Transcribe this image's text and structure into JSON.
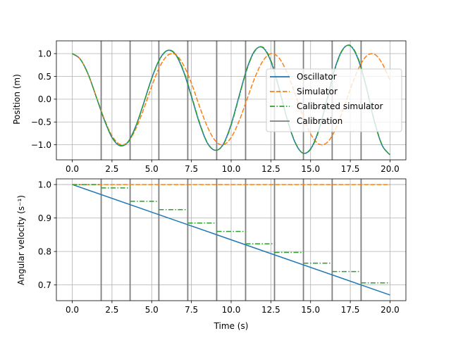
{
  "chart_data": [
    {
      "type": "line",
      "xlabel": "",
      "ylabel": "Position (m)",
      "xlim": [
        -1.0,
        21.0
      ],
      "ylim": [
        -1.33,
        1.28
      ],
      "xticks": [
        0.0,
        2.5,
        5.0,
        7.5,
        10.0,
        12.5,
        15.0,
        17.5,
        20.0
      ],
      "xtick_labels": [
        "0.0",
        "2.5",
        "5.0",
        "7.5",
        "10.0",
        "12.5",
        "15.0",
        "17.5",
        "20.0"
      ],
      "yticks": [
        -1.0,
        -0.5,
        0.0,
        0.5,
        1.0
      ],
      "ytick_labels": [
        "−1.0",
        "−0.5",
        "0.0",
        "0.5",
        "1.0"
      ],
      "grid": true,
      "legend_position": "center-right",
      "series": [
        {
          "name": "Oscillator",
          "color": "#1f77b4",
          "style": "solid",
          "x": [
            0,
            0.5,
            1,
            1.5,
            2,
            2.5,
            3,
            3.5,
            4,
            4.5,
            5,
            5.5,
            6,
            6.5,
            7,
            7.5,
            8,
            8.5,
            9,
            9.5,
            10,
            10.5,
            11,
            11.5,
            12,
            12.5,
            13,
            13.5,
            14,
            14.5,
            15,
            15.5,
            16,
            16.5,
            17,
            17.5,
            18,
            18.5,
            19,
            19.5,
            20
          ],
          "y": [
            1.0,
            0.88,
            0.55,
            0.06,
            -0.44,
            -0.84,
            -1.02,
            -0.94,
            -0.59,
            -0.08,
            0.46,
            0.88,
            1.07,
            0.98,
            0.61,
            0.06,
            -0.52,
            -0.96,
            -1.12,
            -0.99,
            -0.55,
            0.07,
            0.68,
            1.07,
            1.13,
            0.83,
            0.25,
            -0.41,
            -0.93,
            -1.18,
            -1.09,
            -0.69,
            -0.05,
            0.64,
            1.08,
            1.17,
            0.87,
            0.27,
            -0.47,
            -1.01,
            -1.22
          ]
        },
        {
          "name": "Simulator",
          "color": "#ff7f0e",
          "style": "dashed",
          "x": [
            0,
            0.5,
            1,
            1.5,
            2,
            2.5,
            3,
            3.5,
            4,
            4.5,
            5,
            5.5,
            6,
            6.5,
            7,
            7.5,
            8,
            8.5,
            9,
            9.5,
            10,
            10.5,
            11,
            11.5,
            12,
            12.5,
            13,
            13.5,
            14,
            14.5,
            15,
            15.5,
            16,
            16.5,
            17,
            17.5,
            18,
            18.5,
            19,
            19.5,
            20
          ],
          "y": [
            1.0,
            0.88,
            0.54,
            0.07,
            -0.42,
            -0.8,
            -0.99,
            -0.94,
            -0.65,
            -0.21,
            0.28,
            0.71,
            0.96,
            0.98,
            0.75,
            0.35,
            -0.15,
            -0.6,
            -0.91,
            -1.0,
            -0.84,
            -0.48,
            0.0,
            0.48,
            0.84,
            1.0,
            0.91,
            0.6,
            0.14,
            -0.35,
            -0.76,
            -0.98,
            -0.96,
            -0.71,
            -0.28,
            0.22,
            0.66,
            0.94,
            0.99,
            0.79,
            0.41
          ]
        },
        {
          "name": "Calibrated simulator",
          "color": "#2ca02c",
          "style": "dashdot",
          "x": [
            0,
            0.5,
            1,
            1.5,
            2,
            2.5,
            3,
            3.5,
            4,
            4.5,
            5,
            5.5,
            6,
            6.5,
            7,
            7.5,
            8,
            8.5,
            9,
            9.5,
            10,
            10.5,
            11,
            11.5,
            12,
            12.5,
            13,
            13.5,
            14,
            14.5,
            15,
            15.5,
            16,
            16.5,
            17,
            17.5,
            18,
            18.5,
            19,
            19.5,
            20
          ],
          "y": [
            1.0,
            0.88,
            0.55,
            0.06,
            -0.43,
            -0.83,
            -1.01,
            -0.95,
            -0.6,
            -0.09,
            0.45,
            0.87,
            1.07,
            0.99,
            0.63,
            0.08,
            -0.5,
            -0.95,
            -1.12,
            -1.0,
            -0.57,
            0.05,
            0.66,
            1.06,
            1.14,
            0.85,
            0.27,
            -0.4,
            -0.92,
            -1.18,
            -1.1,
            -0.71,
            -0.07,
            0.62,
            1.07,
            1.18,
            0.89,
            0.29,
            -0.45,
            -1.0,
            -1.22
          ]
        },
        {
          "name": "Calibration",
          "color": "#808080",
          "style": "solid"
        }
      ],
      "calibration_x": [
        1.82,
        3.64,
        5.45,
        7.27,
        9.09,
        10.91,
        12.73,
        14.55,
        16.36,
        18.18
      ]
    },
    {
      "type": "line",
      "xlabel": "Time (s)",
      "ylabel": "Angular velocity (s⁻¹)",
      "xlim": [
        -1.0,
        21.0
      ],
      "ylim": [
        0.653,
        1.017
      ],
      "xticks": [
        0.0,
        2.5,
        5.0,
        7.5,
        10.0,
        12.5,
        15.0,
        17.5,
        20.0
      ],
      "xtick_labels": [
        "0.0",
        "2.5",
        "5.0",
        "7.5",
        "10.0",
        "12.5",
        "15.0",
        "17.5",
        "20.0"
      ],
      "yticks": [
        0.7,
        0.8,
        0.9,
        1.0
      ],
      "ytick_labels": [
        "0.7",
        "0.8",
        "0.9",
        "1.0"
      ],
      "grid": true,
      "series": [
        {
          "name": "Oscillator",
          "color": "#1f77b4",
          "style": "solid",
          "x": [
            0,
            20
          ],
          "y": [
            1.0,
            0.67
          ]
        },
        {
          "name": "Simulator",
          "color": "#ff7f0e",
          "style": "dashed",
          "x": [
            0,
            20
          ],
          "y": [
            1.0,
            1.0
          ]
        },
        {
          "name": "Calibrated simulator",
          "color": "#2ca02c",
          "style": "dashdot",
          "steps": [
            {
              "x0": 0.0,
              "x1": 1.82,
              "y": 1.0
            },
            {
              "x0": 1.82,
              "x1": 3.64,
              "y": 0.99
            },
            {
              "x0": 3.64,
              "x1": 5.45,
              "y": 0.95
            },
            {
              "x0": 5.45,
              "x1": 7.27,
              "y": 0.925
            },
            {
              "x0": 7.27,
              "x1": 9.09,
              "y": 0.885
            },
            {
              "x0": 9.09,
              "x1": 10.91,
              "y": 0.86
            },
            {
              "x0": 10.91,
              "x1": 12.73,
              "y": 0.823
            },
            {
              "x0": 12.73,
              "x1": 14.55,
              "y": 0.797
            },
            {
              "x0": 14.55,
              "x1": 16.36,
              "y": 0.765
            },
            {
              "x0": 16.36,
              "x1": 18.18,
              "y": 0.74
            },
            {
              "x0": 18.18,
              "x1": 20.0,
              "y": 0.706
            }
          ]
        }
      ],
      "calibration_x": [
        1.82,
        3.64,
        5.45,
        7.27,
        9.09,
        10.91,
        12.73,
        14.55,
        16.36,
        18.18
      ]
    }
  ],
  "legend": [
    {
      "label": "Oscillator",
      "color": "#1f77b4",
      "style": "solid"
    },
    {
      "label": "Simulator",
      "color": "#ff7f0e",
      "style": "dashed"
    },
    {
      "label": "Calibrated simulator",
      "color": "#2ca02c",
      "style": "dashdot"
    },
    {
      "label": "Calibration",
      "color": "#808080",
      "style": "solid"
    }
  ]
}
